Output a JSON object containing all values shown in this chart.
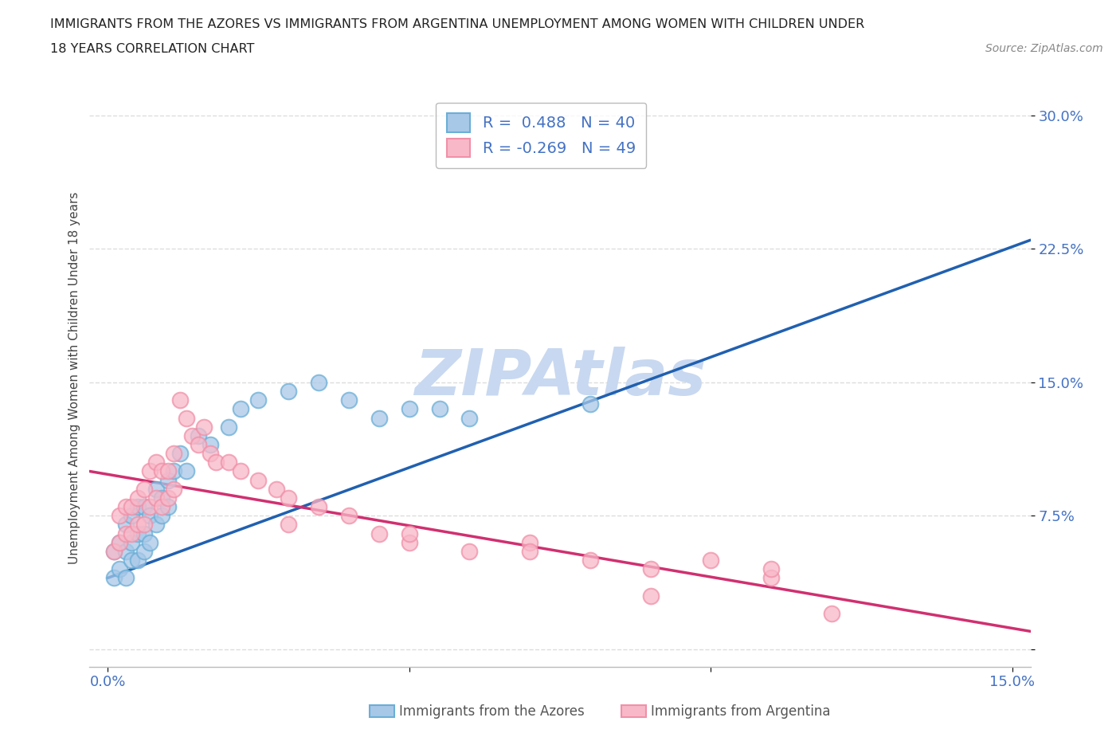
{
  "title_line1": "IMMIGRANTS FROM THE AZORES VS IMMIGRANTS FROM ARGENTINA UNEMPLOYMENT AMONG WOMEN WITH CHILDREN UNDER",
  "title_line2": "18 YEARS CORRELATION CHART",
  "source_text": "Source: ZipAtlas.com",
  "ylabel": "Unemployment Among Women with Children Under 18 years",
  "xlim": [
    -0.003,
    0.153
  ],
  "ylim": [
    -0.01,
    0.315
  ],
  "xticks": [
    0.0,
    0.05,
    0.1,
    0.15
  ],
  "xtick_labels": [
    "0.0%",
    "",
    "",
    "15.0%"
  ],
  "yticks": [
    0.0,
    0.075,
    0.15,
    0.225,
    0.3
  ],
  "ytick_labels": [
    "",
    "7.5%",
    "15.0%",
    "22.5%",
    "30.0%"
  ],
  "legend_label1": "R =  0.488   N = 40",
  "legend_label2": "R = -0.269   N = 49",
  "color_azores_fill": "#a8c8e8",
  "color_azores_edge": "#6baed6",
  "color_argentina_fill": "#f8b8c8",
  "color_argentina_edge": "#f090a8",
  "color_trendline_azores": "#2060b0",
  "color_trendline_argentina": "#e0208080",
  "watermark_color": "#c8d8f0",
  "grid_color": "#dddddd",
  "tick_color": "#4472c4",
  "azores_x": [
    0.001,
    0.001,
    0.002,
    0.002,
    0.003,
    0.003,
    0.003,
    0.004,
    0.004,
    0.004,
    0.005,
    0.005,
    0.005,
    0.006,
    0.006,
    0.006,
    0.007,
    0.007,
    0.008,
    0.008,
    0.009,
    0.009,
    0.01,
    0.01,
    0.011,
    0.012,
    0.013,
    0.015,
    0.017,
    0.02,
    0.022,
    0.025,
    0.03,
    0.035,
    0.04,
    0.045,
    0.05,
    0.055,
    0.06,
    0.08
  ],
  "azores_y": [
    0.04,
    0.055,
    0.045,
    0.06,
    0.04,
    0.055,
    0.07,
    0.05,
    0.06,
    0.075,
    0.05,
    0.065,
    0.08,
    0.055,
    0.065,
    0.08,
    0.06,
    0.075,
    0.07,
    0.09,
    0.075,
    0.085,
    0.08,
    0.095,
    0.1,
    0.11,
    0.1,
    0.12,
    0.115,
    0.125,
    0.135,
    0.14,
    0.145,
    0.15,
    0.14,
    0.13,
    0.135,
    0.135,
    0.13,
    0.138
  ],
  "argentina_x": [
    0.001,
    0.002,
    0.002,
    0.003,
    0.003,
    0.004,
    0.004,
    0.005,
    0.005,
    0.006,
    0.006,
    0.007,
    0.007,
    0.008,
    0.008,
    0.009,
    0.009,
    0.01,
    0.01,
    0.011,
    0.011,
    0.012,
    0.013,
    0.014,
    0.015,
    0.016,
    0.017,
    0.018,
    0.02,
    0.022,
    0.025,
    0.028,
    0.03,
    0.035,
    0.04,
    0.045,
    0.05,
    0.06,
    0.07,
    0.08,
    0.09,
    0.1,
    0.11,
    0.12,
    0.03,
    0.05,
    0.07,
    0.09,
    0.11
  ],
  "argentina_y": [
    0.055,
    0.06,
    0.075,
    0.065,
    0.08,
    0.065,
    0.08,
    0.07,
    0.085,
    0.07,
    0.09,
    0.08,
    0.1,
    0.085,
    0.105,
    0.08,
    0.1,
    0.085,
    0.1,
    0.09,
    0.11,
    0.14,
    0.13,
    0.12,
    0.115,
    0.125,
    0.11,
    0.105,
    0.105,
    0.1,
    0.095,
    0.09,
    0.085,
    0.08,
    0.075,
    0.065,
    0.06,
    0.055,
    0.06,
    0.05,
    0.045,
    0.05,
    0.04,
    0.02,
    0.07,
    0.065,
    0.055,
    0.03,
    0.045
  ],
  "azores_trend_x0": 0.0,
  "azores_trend_y0": 0.04,
  "azores_trend_x1": 0.153,
  "azores_trend_y1": 0.23,
  "argentina_trend_x0": -0.003,
  "argentina_trend_y0": 0.1,
  "argentina_trend_x1": 0.153,
  "argentina_trend_y1": 0.01
}
